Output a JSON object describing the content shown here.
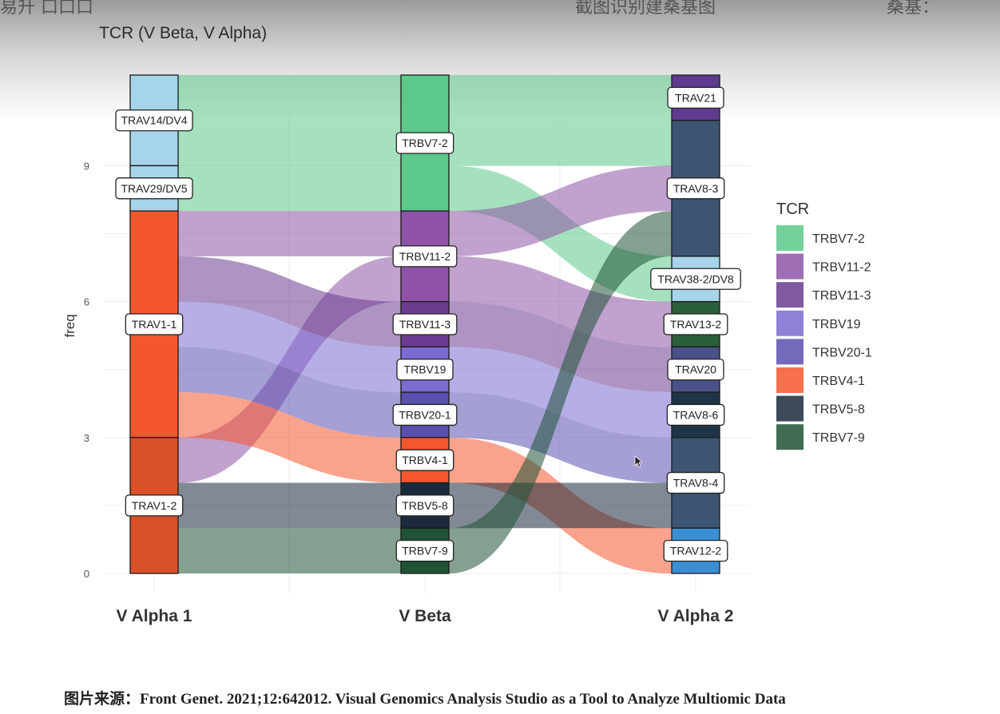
{
  "overlay": {
    "left_text": "易升 口口口",
    "center_text": "截图识别建桑基图",
    "right_text": "桑基："
  },
  "caption": "图片来源：Front Genet. 2021;12:642012. Visual Genomics Analysis Studio as a Tool to Analyze Multiomic Data",
  "chart_data": {
    "type": "sankey",
    "title": "TCR (V Beta, V Alpha)",
    "ylabel": "freq",
    "ylim": [
      0,
      11
    ],
    "yticks": [
      0,
      3,
      6,
      9
    ],
    "grid": true,
    "legend_title": "TCR",
    "legend_position": "right",
    "axes": [
      "V Alpha 1",
      "V Beta",
      "V Alpha 2"
    ],
    "nodes": {
      "V Alpha 1": [
        {
          "name": "TRAV14/DV4",
          "value": 2,
          "color": "#a6d5ea"
        },
        {
          "name": "TRAV29/DV5",
          "value": 1,
          "color": "#a6d5ea"
        },
        {
          "name": "TRAV1-1",
          "value": 5,
          "color": "#f4572e"
        },
        {
          "name": "TRAV1-2",
          "value": 3,
          "color": "#d9502a"
        }
      ],
      "V Beta": [
        {
          "name": "TRBV7-2",
          "value": 3,
          "color": "#5cc98a"
        },
        {
          "name": "TRBV11-2",
          "value": 2,
          "color": "#8e53a6"
        },
        {
          "name": "TRBV11-3",
          "value": 1,
          "color": "#6b3c8f"
        },
        {
          "name": "TRBV19",
          "value": 1,
          "color": "#7a6bd1"
        },
        {
          "name": "TRBV20-1",
          "value": 1,
          "color": "#5a50b0"
        },
        {
          "name": "TRBV4-1",
          "value": 1,
          "color": "#f4572e"
        },
        {
          "name": "TRBV5-8",
          "value": 1,
          "color": "#1a2a3c"
        },
        {
          "name": "TRBV7-9",
          "value": 1,
          "color": "#1f5236"
        }
      ],
      "V Alpha 2": [
        {
          "name": "TRAV21",
          "value": 1,
          "color": "#5e3b8c"
        },
        {
          "name": "TRAV8-3",
          "value": 3,
          "color": "#3d5573"
        },
        {
          "name": "TRAV38-2/DV8",
          "value": 1,
          "color": "#a6d5ea"
        },
        {
          "name": "TRAV13-2",
          "value": 1,
          "color": "#2b5e3a"
        },
        {
          "name": "TRAV20",
          "value": 1,
          "color": "#4a5088"
        },
        {
          "name": "TRAV8-6",
          "value": 1,
          "color": "#1e3548"
        },
        {
          "name": "TRAV8-4",
          "value": 2,
          "color": "#3d5573"
        },
        {
          "name": "TRAV12-2",
          "value": 1,
          "color": "#3a8fd4"
        }
      ]
    },
    "flows": [
      {
        "tcr": "TRBV7-2",
        "alpha1": "TRAV14/DV4",
        "alpha2": "TRAV21",
        "value": 1
      },
      {
        "tcr": "TRBV7-2",
        "alpha1": "TRAV14/DV4",
        "alpha2": "TRAV8-3",
        "value": 1
      },
      {
        "tcr": "TRBV7-2",
        "alpha1": "TRAV29/DV5",
        "alpha2": "TRAV38-2/DV8",
        "value": 1
      },
      {
        "tcr": "TRBV11-2",
        "alpha1": "TRAV1-1",
        "alpha2": "TRAV8-3",
        "value": 1
      },
      {
        "tcr": "TRBV11-2",
        "alpha1": "TRAV1-2",
        "alpha2": "TRAV13-2",
        "value": 1
      },
      {
        "tcr": "TRBV11-3",
        "alpha1": "TRAV1-1",
        "alpha2": "TRAV20",
        "value": 1
      },
      {
        "tcr": "TRBV19",
        "alpha1": "TRAV1-1",
        "alpha2": "TRAV8-6",
        "value": 1
      },
      {
        "tcr": "TRBV20-1",
        "alpha1": "TRAV1-1",
        "alpha2": "TRAV8-4",
        "value": 1
      },
      {
        "tcr": "TRBV4-1",
        "alpha1": "TRAV1-1",
        "alpha2": "TRAV12-2",
        "value": 1
      },
      {
        "tcr": "TRBV5-8",
        "alpha1": "TRAV1-2",
        "alpha2": "TRAV8-4",
        "value": 1
      },
      {
        "tcr": "TRBV7-9",
        "alpha1": "TRAV1-2",
        "alpha2": "TRAV8-3",
        "value": 1
      }
    ],
    "legend": [
      {
        "name": "TRBV7-2",
        "color": "#5cc98a"
      },
      {
        "name": "TRBV11-2",
        "color": "#8e53a6"
      },
      {
        "name": "TRBV11-3",
        "color": "#6b3c8f"
      },
      {
        "name": "TRBV19",
        "color": "#7a6bd1"
      },
      {
        "name": "TRBV20-1",
        "color": "#5a50b0"
      },
      {
        "name": "TRBV4-1",
        "color": "#f4572e"
      },
      {
        "name": "TRBV5-8",
        "color": "#1a2a3c"
      },
      {
        "name": "TRBV7-9",
        "color": "#1f5236"
      }
    ]
  }
}
